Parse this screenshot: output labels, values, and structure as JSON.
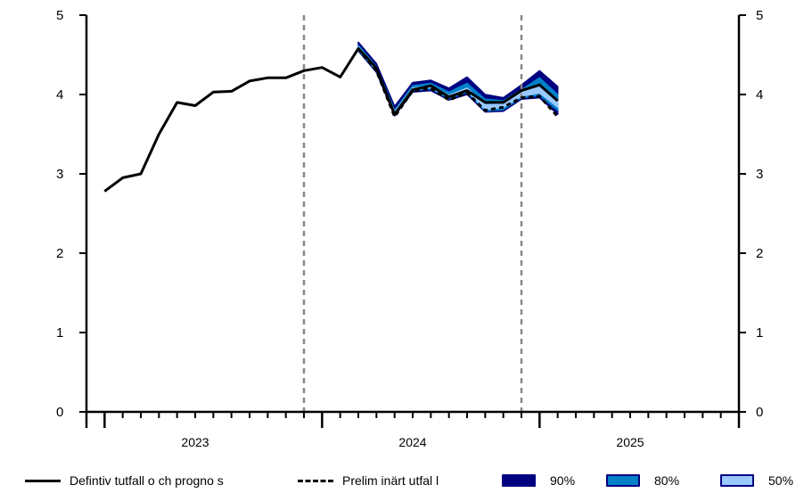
{
  "chart_data": {
    "type": "line",
    "title": "",
    "xlabel": "",
    "ylabel": "",
    "ylim": [
      0,
      5
    ],
    "yticks": [
      0,
      1,
      2,
      3,
      4,
      5
    ],
    "x_range": [
      "2022-12",
      "2025-12"
    ],
    "year_labels": [
      "2023",
      "2024",
      "2025"
    ],
    "vertical_markers": [
      "2023-12",
      "2024-12"
    ],
    "series": [
      {
        "name": "Defintiv tutfall o ch progno s",
        "style": "solid",
        "color": "#000000",
        "x": [
          "2023-01",
          "2023-02",
          "2023-03",
          "2023-04",
          "2023-05",
          "2023-06",
          "2023-07",
          "2023-08",
          "2023-09",
          "2023-10",
          "2023-11",
          "2023-12",
          "2024-01",
          "2024-02",
          "2024-03",
          "2024-04",
          "2024-05",
          "2024-06",
          "2024-07",
          "2024-08",
          "2024-09",
          "2024-10",
          "2024-11",
          "2024-12",
          "2025-01",
          "2025-02"
        ],
        "values": [
          2.78,
          2.95,
          3.0,
          3.5,
          3.9,
          3.86,
          4.03,
          4.04,
          4.17,
          4.21,
          4.21,
          4.3,
          4.34,
          4.22,
          4.58,
          4.33,
          3.75,
          4.06,
          4.11,
          3.97,
          4.05,
          3.9,
          3.9,
          4.05,
          4.12,
          3.92
        ]
      },
      {
        "name": "Prelim inärt utfal l",
        "style": "dashed",
        "color": "#000000",
        "x": [
          "2024-03",
          "2024-04",
          "2024-05",
          "2024-06",
          "2024-07",
          "2024-08",
          "2024-09",
          "2024-10",
          "2024-11",
          "2024-12",
          "2025-01",
          "2025-02"
        ],
        "values": [
          4.58,
          4.3,
          3.72,
          4.05,
          4.08,
          3.93,
          4.02,
          3.8,
          3.84,
          3.96,
          3.98,
          3.72
        ]
      }
    ],
    "bands": [
      {
        "name": "90%",
        "color": "#000080",
        "x": [
          "2024-03",
          "2024-04",
          "2024-05",
          "2024-06",
          "2024-07",
          "2024-08",
          "2024-09",
          "2024-10",
          "2024-11",
          "2024-12",
          "2025-01",
          "2025-02"
        ],
        "lower": [
          4.55,
          4.28,
          3.73,
          4.03,
          4.05,
          3.93,
          4.0,
          3.78,
          3.79,
          3.94,
          3.96,
          3.75
        ],
        "upper": [
          4.66,
          4.39,
          3.85,
          4.15,
          4.18,
          4.08,
          4.22,
          4.0,
          3.96,
          4.12,
          4.3,
          4.1
        ]
      },
      {
        "name": "80%",
        "color": "#0080c8",
        "x": [
          "2024-03",
          "2024-04",
          "2024-05",
          "2024-06",
          "2024-07",
          "2024-08",
          "2024-09",
          "2024-10",
          "2024-11",
          "2024-12",
          "2025-01",
          "2025-02"
        ],
        "lower": [
          4.56,
          4.3,
          3.75,
          4.05,
          4.07,
          3.95,
          4.03,
          3.79,
          3.81,
          3.96,
          3.99,
          3.8
        ],
        "upper": [
          4.62,
          4.35,
          3.8,
          4.11,
          4.14,
          4.03,
          4.14,
          3.94,
          3.92,
          4.06,
          4.21,
          4.0
        ]
      },
      {
        "name": "50%",
        "color": "#99c9ff",
        "x": [
          "2024-03",
          "2024-04",
          "2024-05",
          "2024-06",
          "2024-07",
          "2024-08",
          "2024-09",
          "2024-10",
          "2024-11",
          "2024-12",
          "2025-01",
          "2025-02"
        ],
        "lower": [
          4.57,
          4.31,
          3.77,
          4.06,
          4.09,
          3.96,
          4.05,
          3.81,
          3.84,
          3.98,
          4.02,
          3.84
        ],
        "upper": [
          4.6,
          4.33,
          3.78,
          4.08,
          4.11,
          3.99,
          4.08,
          3.87,
          3.88,
          4.02,
          4.12,
          3.92
        ]
      }
    ],
    "grid": false,
    "legend_position": "bottom"
  },
  "legend": {
    "solid_label": "Defintiv tutfall o ch progno s",
    "dashed_label": "Prelim inärt utfal l",
    "band_90_label": "90%",
    "band_80_label": "80%",
    "band_50_label": "50%"
  }
}
